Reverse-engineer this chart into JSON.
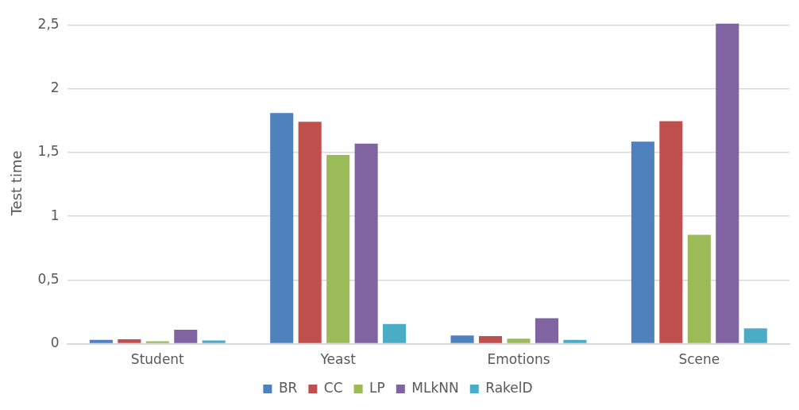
{
  "chart_data": {
    "type": "bar",
    "ylabel": "Test time",
    "categories": [
      "Student",
      "Yeast",
      "Emotions",
      "Scene"
    ],
    "series": [
      {
        "name": "BR",
        "color": "#4f81bd",
        "values": [
          0.03,
          1.81,
          0.065,
          1.585
        ]
      },
      {
        "name": "CC",
        "color": "#c0504d",
        "values": [
          0.035,
          1.74,
          0.06,
          1.745
        ]
      },
      {
        "name": "LP",
        "color": "#9bbb59",
        "values": [
          0.02,
          1.48,
          0.04,
          0.855
        ]
      },
      {
        "name": "MLkNN",
        "color": "#8064a2",
        "values": [
          0.11,
          1.57,
          0.2,
          2.51
        ]
      },
      {
        "name": "RakelD",
        "color": "#4bacc6",
        "values": [
          0.025,
          0.155,
          0.03,
          0.12
        ]
      }
    ],
    "ylim": [
      0,
      2.52
    ],
    "yticks": [
      0,
      {
        "value": 0.5,
        "label": "0,5"
      },
      1,
      {
        "value": 1.5,
        "label": "1,5"
      },
      2,
      {
        "value": 2.5,
        "label": "2,5"
      }
    ],
    "grid": "y",
    "legend": "bottom"
  }
}
